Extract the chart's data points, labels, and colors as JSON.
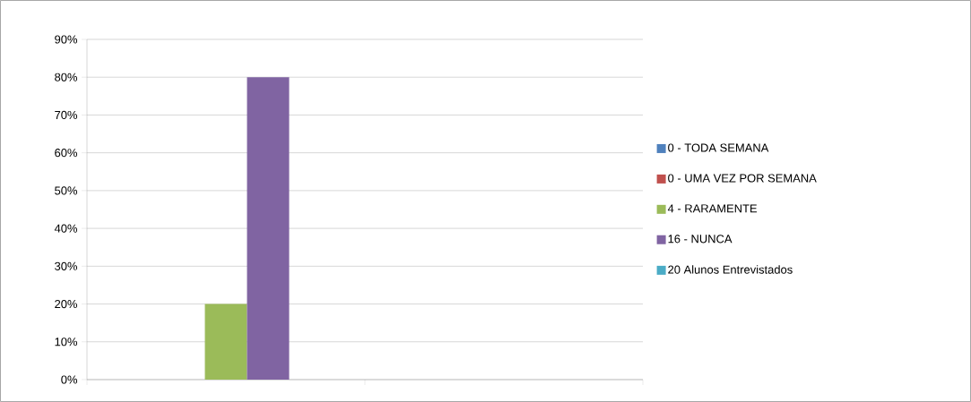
{
  "chart_data": {
    "type": "bar",
    "categories": [
      null,
      null
    ],
    "series": [
      {
        "name": "0 - TODA SEMANA",
        "color": "#4f81bd",
        "values": [
          0,
          null
        ]
      },
      {
        "name": "0 - UMA VEZ POR SEMANA",
        "color": "#c0504d",
        "values": [
          0,
          null
        ]
      },
      {
        "name": "4 - RARAMENTE",
        "color": "#9bbb59",
        "values": [
          20,
          null
        ]
      },
      {
        "name": "16 - NUNCA",
        "color": "#8064a2",
        "values": [
          80,
          null
        ]
      },
      {
        "name": "20 Alunos Entrevistados",
        "color": "#4bacc6",
        "values": [
          0,
          null
        ]
      }
    ],
    "ylim": [
      0,
      90
    ],
    "yticks": [
      {
        "value": 0,
        "label": "0%"
      },
      {
        "value": 10,
        "label": "10%"
      },
      {
        "value": 20,
        "label": "20%"
      },
      {
        "value": 30,
        "label": "30%"
      },
      {
        "value": 40,
        "label": "40%"
      },
      {
        "value": 50,
        "label": "50%"
      },
      {
        "value": 60,
        "label": "60%"
      },
      {
        "value": 70,
        "label": "70%"
      },
      {
        "value": 80,
        "label": "80%"
      },
      {
        "value": 90,
        "label": "90%"
      }
    ],
    "grid": "y",
    "legend": "right"
  }
}
